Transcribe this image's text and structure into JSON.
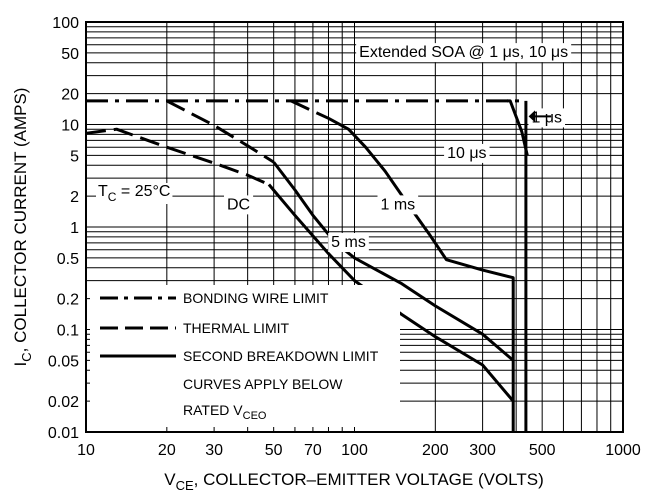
{
  "chart_data": {
    "type": "line",
    "title": "",
    "xlabel": {
      "main": "V",
      "sub": "CE",
      "rest": ", COLLECTOR–EMITTER VOLTAGE (VOLTS)"
    },
    "ylabel": {
      "main": "I",
      "sub": "C",
      "rest": ", COLLECTOR CURRENT (AMPS)"
    },
    "xscale": "log",
    "yscale": "log",
    "xlim": [
      10,
      1000
    ],
    "ylim": [
      0.01,
      100
    ],
    "grid": true,
    "x_ticks": [
      {
        "v": 10,
        "label": "10"
      },
      {
        "v": 20,
        "label": "20"
      },
      {
        "v": 30,
        "label": "30"
      },
      {
        "v": 50,
        "label": "50"
      },
      {
        "v": 70,
        "label": "70"
      },
      {
        "v": 100,
        "label": "100"
      },
      {
        "v": 200,
        "label": "200"
      },
      {
        "v": 300,
        "label": "300"
      },
      {
        "v": 500,
        "label": "500"
      },
      {
        "v": 1000,
        "label": "1000"
      }
    ],
    "y_ticks": [
      {
        "v": 100,
        "label": "100"
      },
      {
        "v": 50,
        "label": "50"
      },
      {
        "v": 20,
        "label": "20"
      },
      {
        "v": 10,
        "label": "10"
      },
      {
        "v": 5,
        "label": "5"
      },
      {
        "v": 2,
        "label": "2"
      },
      {
        "v": 1,
        "label": "1"
      },
      {
        "v": 0.5,
        "label": "0.5"
      },
      {
        "v": 0.2,
        "label": "0.2"
      },
      {
        "v": 0.1,
        "label": "0.1"
      },
      {
        "v": 0.05,
        "label": "0.05"
      },
      {
        "v": 0.02,
        "label": "0.02"
      },
      {
        "v": 0.01,
        "label": "0.01"
      }
    ],
    "series": [
      {
        "name": "BONDING WIRE LIMIT",
        "style": "dashdot",
        "x": [
          10,
          420
        ],
        "y": [
          17,
          17
        ]
      },
      {
        "style": "dash",
        "x": [
          10,
          13,
          20,
          30,
          40,
          48
        ],
        "y": [
          8.2,
          9,
          6,
          4.2,
          3.2,
          2.6
        ]
      },
      {
        "style": "dash",
        "x": [
          20,
          30,
          40,
          50
        ],
        "y": [
          17,
          9.8,
          6.2,
          4.3
        ]
      },
      {
        "style": "dash",
        "x": [
          58,
          70,
          80
        ],
        "y": [
          17,
          13.5,
          11.5
        ]
      },
      {
        "style": "solid",
        "x": [
          48,
          60,
          80,
          100,
          150,
          200,
          300,
          390
        ],
        "y": [
          2.6,
          1.3,
          0.55,
          0.3,
          0.14,
          0.085,
          0.045,
          0.02
        ]
      },
      {
        "style": "solid",
        "x": [
          50,
          60,
          70,
          85,
          100,
          150,
          200,
          300,
          390
        ],
        "y": [
          4.3,
          2.3,
          1.3,
          0.7,
          0.5,
          0.28,
          0.17,
          0.09,
          0.05
        ]
      },
      {
        "style": "solid",
        "x": [
          80,
          95,
          110,
          130,
          160,
          190,
          220,
          300,
          390,
          390
        ],
        "y": [
          11.5,
          9,
          6,
          3.5,
          1.6,
          0.85,
          0.48,
          0.38,
          0.32,
          0.01
        ]
      },
      {
        "style": "solid",
        "x": [
          370,
          380,
          420,
          440
        ],
        "y": [
          17,
          17,
          8.5,
          5
        ]
      },
      {
        "style": "solid",
        "x": [
          435,
          435
        ],
        "y": [
          17,
          0.01
        ]
      }
    ],
    "annotations": [
      {
        "text": "Extended SOA @ 1 μs, 10 μs",
        "x": 255,
        "y": 52
      },
      {
        "text": "1 μs",
        "x": 520,
        "y": 12
      },
      {
        "text": "10 μs",
        "x": 262,
        "y": 5.4
      },
      {
        "text": "1 ms",
        "x": 145,
        "y": 1.7
      },
      {
        "text": "5 ms",
        "x": 95,
        "y": 0.73
      },
      {
        "text": "DC",
        "x": 37,
        "y": 1.7
      }
    ],
    "tc_label": {
      "main": "T",
      "sub": "C",
      "rest": " = 25°C"
    },
    "legend": {
      "location": "bottom-left",
      "items": [
        {
          "style": "dashdot",
          "label": "BONDING WIRE LIMIT"
        },
        {
          "style": "dash",
          "label": "THERMAL LIMIT"
        },
        {
          "style": "solid",
          "label": "SECOND BREAKDOWN LIMIT"
        }
      ],
      "note_line1": "CURVES APPLY BELOW",
      "note_line2": {
        "main": "RATED V",
        "sub": "CEO"
      }
    }
  }
}
